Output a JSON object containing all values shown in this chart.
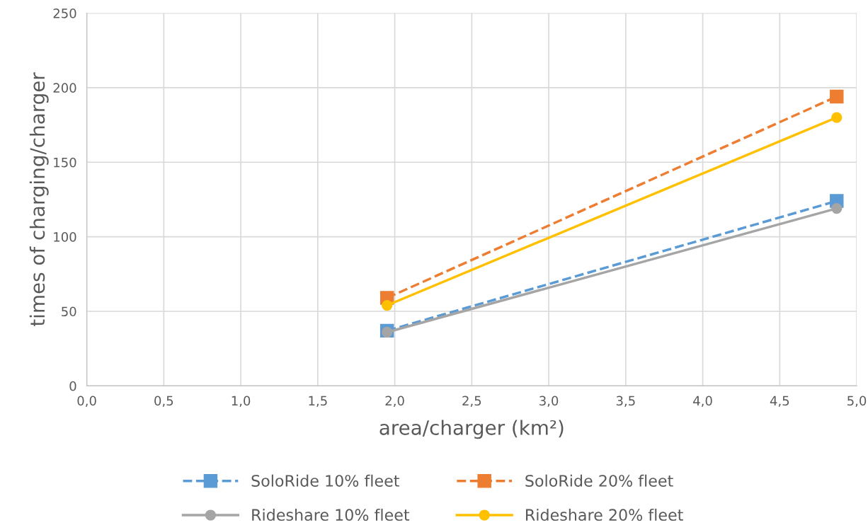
{
  "chart_data": {
    "type": "line",
    "xlabel": "area/charger (km²)",
    "ylabel": "times of charging/charger",
    "xlim": [
      0,
      5
    ],
    "xticks": [
      {
        "value": 0,
        "label": "0,0"
      },
      {
        "value": 0.5,
        "label": "0,5"
      },
      {
        "value": 1,
        "label": "1,0"
      },
      {
        "value": 1.5,
        "label": "1,5"
      },
      {
        "value": 2,
        "label": "2,0"
      },
      {
        "value": 2.5,
        "label": "2,5"
      },
      {
        "value": 3,
        "label": "3,0"
      },
      {
        "value": 3.5,
        "label": "3,5"
      },
      {
        "value": 4,
        "label": "4,0"
      },
      {
        "value": 4.5,
        "label": "4,5"
      },
      {
        "value": 5,
        "label": "5,0"
      }
    ],
    "ylim": [
      0,
      250
    ],
    "yticks": [
      0,
      50,
      100,
      150,
      200,
      250
    ],
    "grid": true,
    "legend": "bottom",
    "x": [
      1.95,
      4.87
    ],
    "series": [
      {
        "name": "SoloRide 10% fleet",
        "color": "#5b9bd5",
        "values": [
          37,
          124
        ],
        "marker": "square",
        "line_style": "dashed"
      },
      {
        "name": "SoloRide 20% fleet",
        "color": "#ed7d31",
        "values": [
          59,
          194
        ],
        "marker": "square",
        "line_style": "dashed"
      },
      {
        "name": "Rideshare 10% fleet",
        "color": "#a5a5a5",
        "values": [
          36,
          119
        ],
        "marker": "circle",
        "line_style": "solid"
      },
      {
        "name": "Rideshare 20% fleet",
        "color": "#ffc000",
        "values": [
          54,
          180
        ],
        "marker": "circle",
        "line_style": "solid"
      }
    ]
  }
}
